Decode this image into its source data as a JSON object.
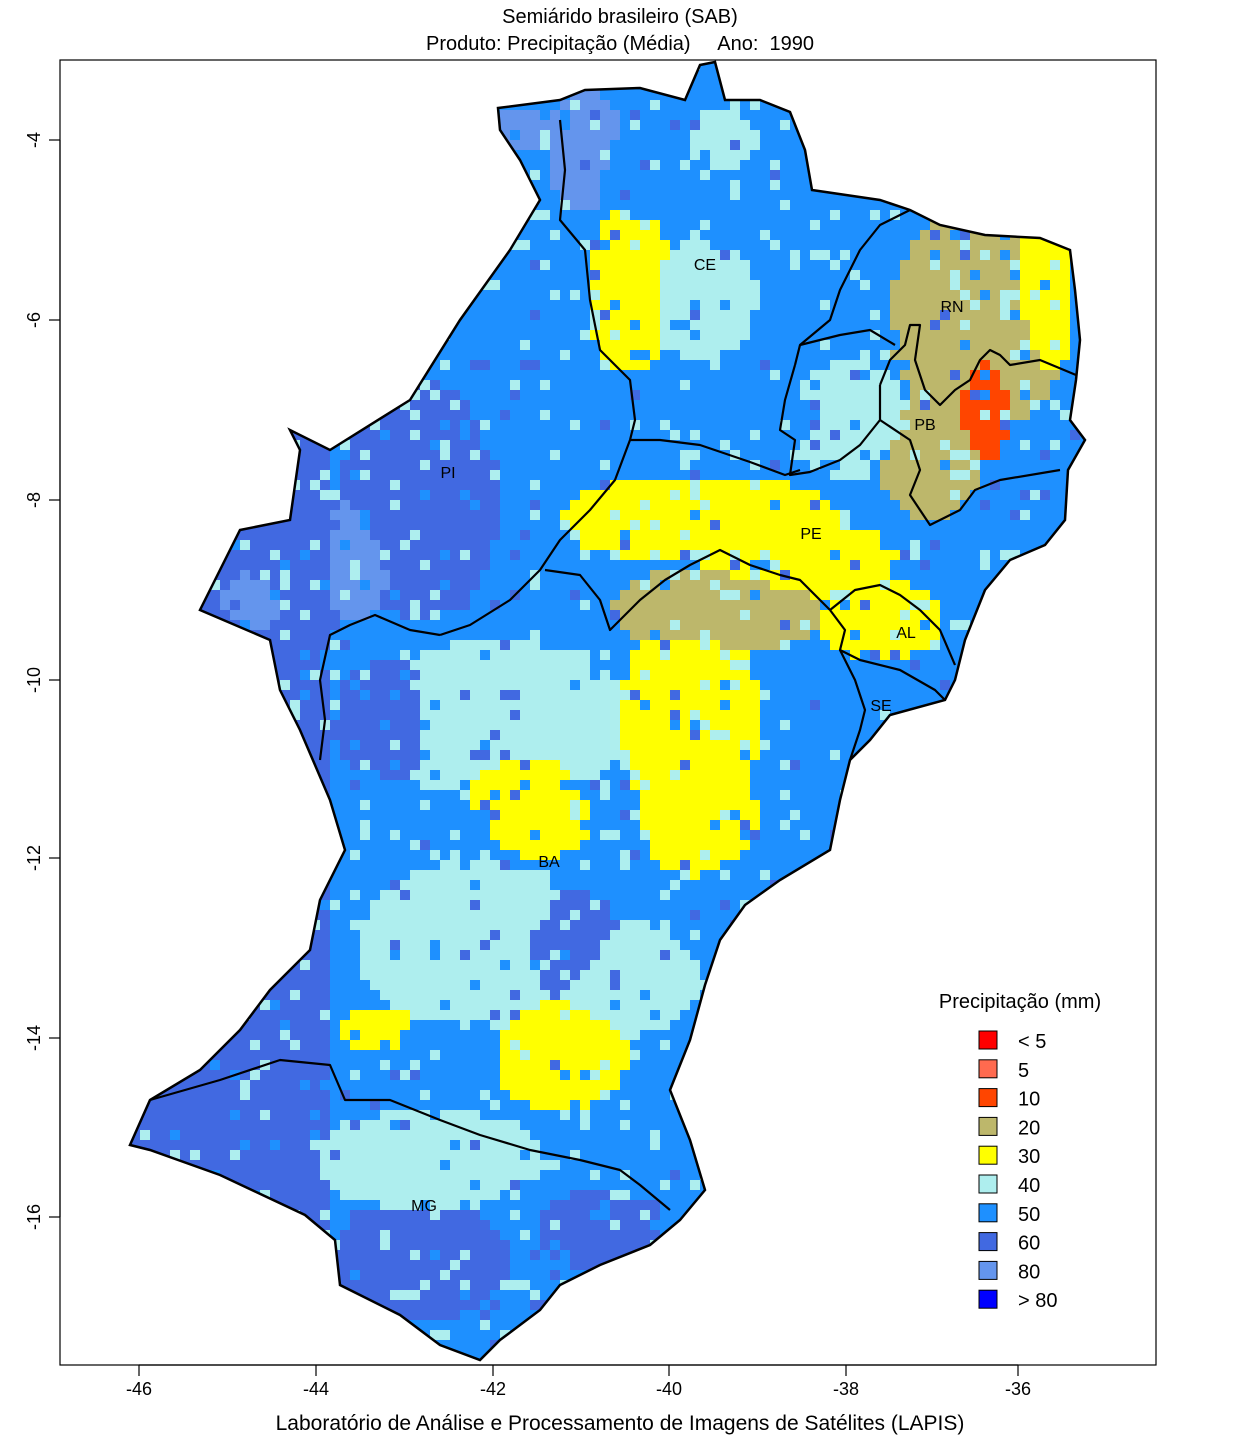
{
  "title_line1": "Semiárido brasileiro (SAB)",
  "title_line2": "Produto: Precipitação (Média)     Ano:  1990",
  "footer": "Laboratório de Análise e Processamento de Imagens de Satélites (LAPIS)",
  "map": {
    "x_ticks": [
      "-46",
      "-44",
      "-42",
      "-40",
      "-38",
      "-36"
    ],
    "y_ticks": [
      "-4",
      "-6",
      "-8",
      "-10",
      "-12",
      "-14",
      "-16"
    ],
    "state_labels": [
      "CE",
      "RN",
      "PB",
      "PI",
      "PE",
      "AL",
      "SE",
      "BA",
      "MG"
    ],
    "colors": {
      "lt5": "#ff0000",
      "c5": "#ff6a4f",
      "c10": "#ff4500",
      "c20": "#bdb76b",
      "c30": "#ffff00",
      "c40": "#aeeeee",
      "c50": "#1e90ff",
      "c60": "#4169e1",
      "c80": "#6495ed",
      "gt80": "#0000ff"
    }
  },
  "legend": {
    "title": "Precipitação (mm)",
    "items": [
      {
        "label": "< 5",
        "color": "#ff0000"
      },
      {
        "label": "5",
        "color": "#ff6a4f"
      },
      {
        "label": "10",
        "color": "#ff4500"
      },
      {
        "label": "20",
        "color": "#bdb76b"
      },
      {
        "label": "30",
        "color": "#ffff00"
      },
      {
        "label": "40",
        "color": "#aeeeee"
      },
      {
        "label": "50",
        "color": "#1e90ff"
      },
      {
        "label": "60",
        "color": "#4169e1"
      },
      {
        "label": "80",
        "color": "#6495ed"
      },
      {
        "label": "> 80",
        "color": "#0000ff"
      }
    ]
  }
}
